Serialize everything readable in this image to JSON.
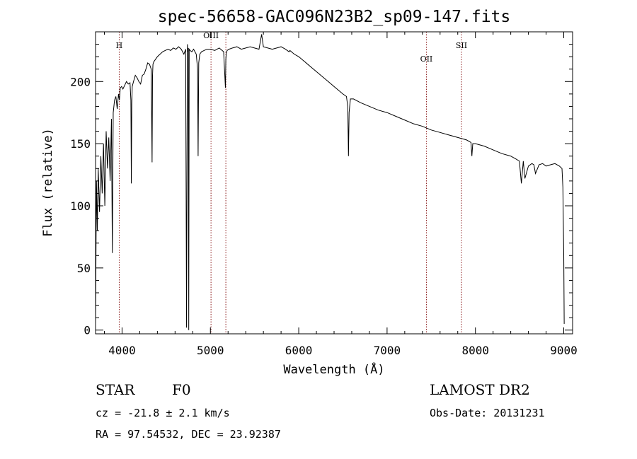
{
  "chart_data": {
    "type": "line",
    "title": "spec-56658-GAC096N23B2_sp09-147.fits",
    "xlabel": "Wavelength (Å)",
    "ylabel": "Flux (relative)",
    "xlim": [
      3700,
      9100
    ],
    "ylim": [
      -3,
      240
    ],
    "x_ticks": [
      4000,
      5000,
      6000,
      7000,
      8000,
      9000
    ],
    "y_ticks": [
      0,
      50,
      100,
      150,
      200
    ],
    "x_tick_labels": [
      "4000",
      "5000",
      "6000",
      "7000",
      "8000",
      "9000"
    ],
    "y_tick_labels": [
      "0",
      "50",
      "100",
      "150",
      "200"
    ],
    "series": [
      {
        "x": [
          3700,
          3710,
          3720,
          3730,
          3745,
          3760,
          3775,
          3790,
          3805,
          3820,
          3835,
          3850,
          3865,
          3880,
          3890,
          3900,
          3915,
          3930,
          3945,
          3960,
          3970,
          3980,
          3995,
          4010,
          4030,
          4050,
          4070,
          4090,
          4100,
          4105,
          4110,
          4115,
          4130,
          4150,
          4170,
          4190,
          4210,
          4230,
          4250,
          4270,
          4290,
          4310,
          4330,
          4340,
          4345,
          4350,
          4360,
          4380,
          4400,
          4430,
          4460,
          4490,
          4520,
          4550,
          4580,
          4610,
          4640,
          4670,
          4700,
          4720,
          4730,
          4740,
          4745,
          4750,
          4755,
          4760,
          4770,
          4790,
          4810,
          4840,
          4855,
          4861,
          4868,
          4880,
          4900,
          4930,
          4960,
          5000,
          5050,
          5100,
          5150,
          5170,
          5175,
          5180,
          5190,
          5210,
          5250,
          5300,
          5350,
          5400,
          5450,
          5500,
          5550,
          5580,
          5600,
          5650,
          5700,
          5750,
          5800,
          5850,
          5890,
          5900,
          5950,
          6000,
          6050,
          6100,
          6150,
          6200,
          6250,
          6300,
          6350,
          6400,
          6450,
          6500,
          6540,
          6555,
          6563,
          6570,
          6585,
          6620,
          6700,
          6800,
          6900,
          7000,
          7100,
          7200,
          7300,
          7400,
          7500,
          7600,
          7700,
          7800,
          7900,
          7950,
          7960,
          7970,
          8000,
          8100,
          8200,
          8300,
          8400,
          8450,
          8498,
          8520,
          8542,
          8560,
          8600,
          8640,
          8662,
          8680,
          8720,
          8760,
          8800,
          8850,
          8900,
          8950,
          8980,
          8990,
          9000,
          9005
        ],
        "y": [
          5,
          120,
          80,
          130,
          95,
          140,
          110,
          150,
          100,
          160,
          130,
          155,
          120,
          170,
          62,
          175,
          185,
          188,
          178,
          190,
          185,
          195,
          196,
          194,
          197,
          200,
          198,
          199,
          185,
          118,
          182,
          196,
          200,
          205,
          203,
          200,
          198,
          205,
          206,
          210,
          215,
          214,
          210,
          135,
          205,
          214,
          216,
          218,
          220,
          222,
          224,
          225,
          226,
          225,
          227,
          226,
          228,
          226,
          222,
          226,
          2,
          230,
          224,
          227,
          0,
          226,
          225,
          224,
          226,
          222,
          210,
          140,
          215,
          222,
          224,
          225,
          226,
          226,
          225,
          227,
          224,
          195,
          218,
          223,
          225,
          226,
          227,
          228,
          226,
          227,
          228,
          227,
          226,
          238,
          228,
          227,
          226,
          227,
          228,
          226,
          224,
          225,
          222,
          220,
          217,
          214,
          211,
          208,
          205,
          202,
          199,
          196,
          193,
          190,
          188,
          180,
          140,
          175,
          186,
          186,
          183,
          180,
          177,
          175,
          172,
          169,
          166,
          164,
          161,
          159,
          157,
          155,
          153,
          151,
          140,
          150,
          150,
          148,
          145,
          142,
          140,
          138,
          136,
          118,
          136,
          122,
          132,
          134,
          133,
          126,
          133,
          134,
          132,
          133,
          134,
          132,
          130,
          115,
          60,
          5
        ]
      }
    ],
    "lines": [
      {
        "x": 3968,
        "label": "H",
        "label_y": 227
      },
      {
        "x": 5007,
        "label": "OIII",
        "label_y": 235
      },
      {
        "x": 5175,
        "label": "",
        "label_y": 0
      },
      {
        "x": 7445,
        "label": "OII",
        "label_y": 216
      },
      {
        "x": 7842,
        "label": "SII",
        "label_y": 227
      }
    ]
  },
  "footer": {
    "class_label": "STAR",
    "subclass_label": "F0",
    "survey_label": "LAMOST DR2",
    "cz_text": "cz = -21.8 ± 2.1 km/s",
    "obs_date_text": "Obs-Date: 20131231",
    "radec_text": "RA =  97.54532, DEC =  23.92387"
  },
  "colors": {
    "spectrum": "#000000",
    "axes": "#000000",
    "line_markers": "#8b1a1a"
  }
}
